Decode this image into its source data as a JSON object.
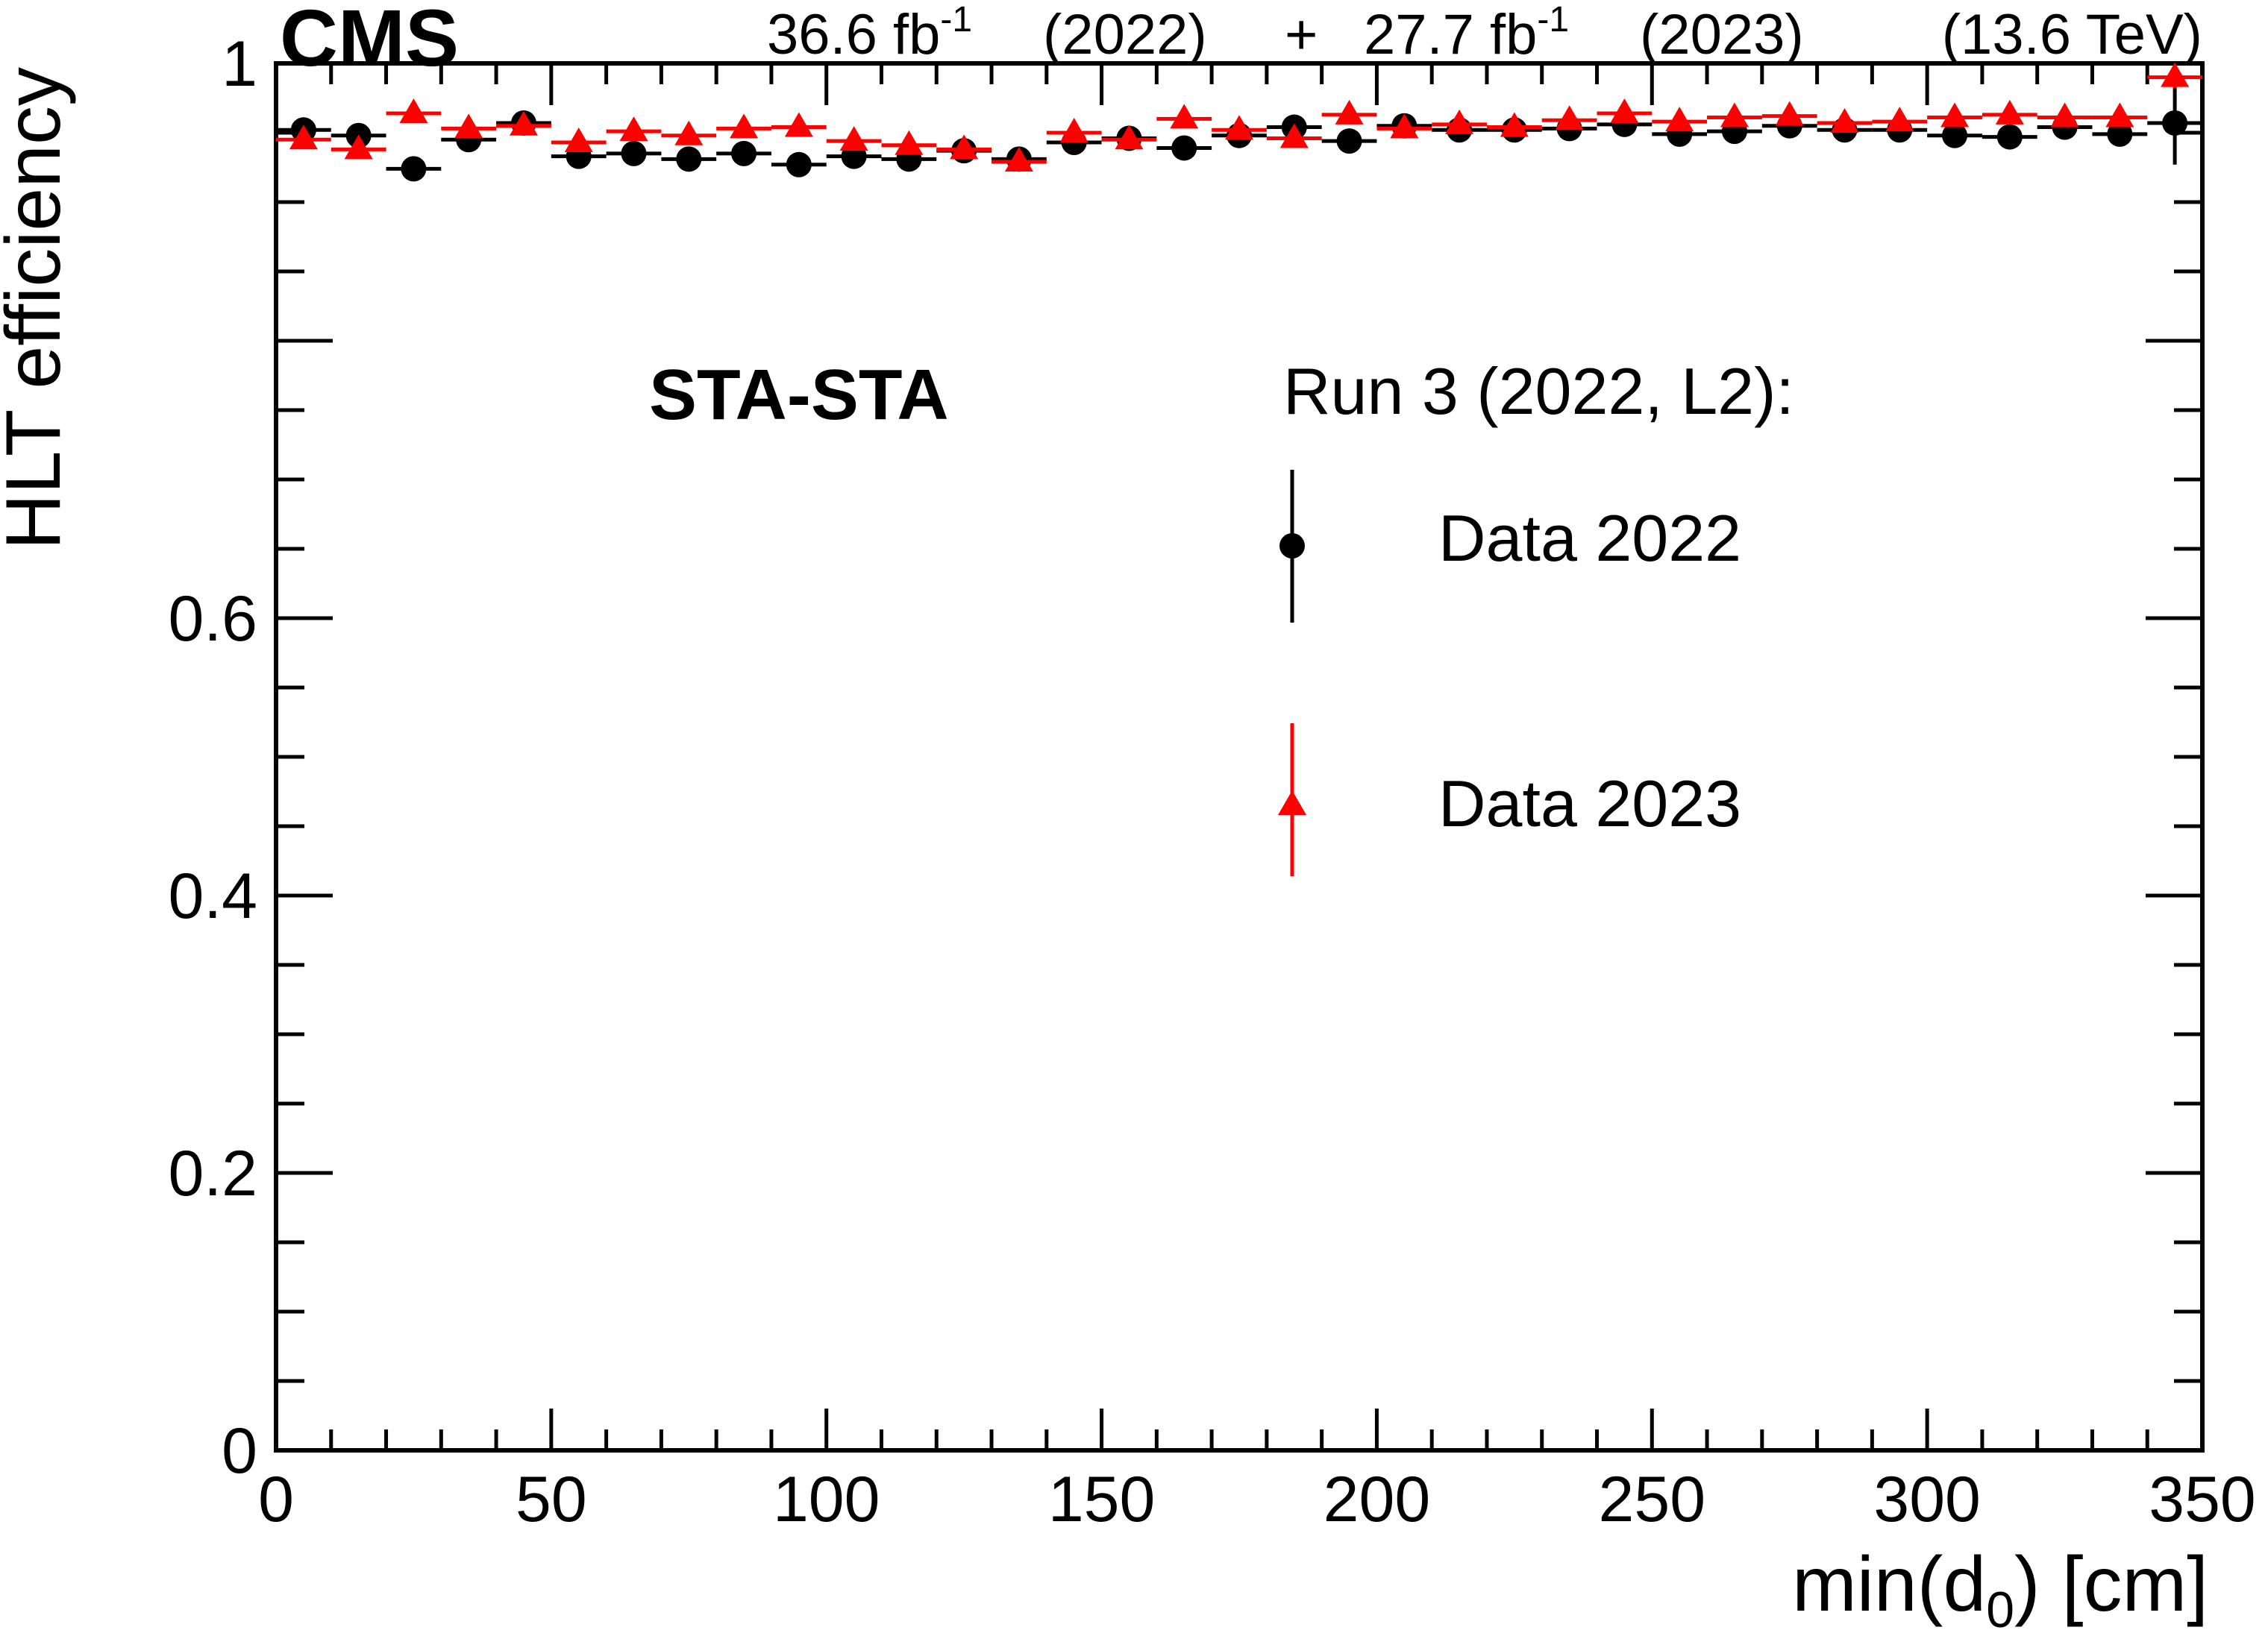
{
  "header": {
    "experiment": "CMS",
    "lumi_2022": "36.6 fb",
    "lumi_2022_exp": "-1",
    "year_2022": "(2022)",
    "plus": "+",
    "lumi_2023": "27.7 fb",
    "lumi_2023_exp": "-1",
    "year_2023": "(2023)",
    "energy": "(13.6 TeV)"
  },
  "annotation": "STA-STA",
  "legend": {
    "title": "Run 3 (2022, L2):",
    "entries": [
      "Data 2022",
      "Data 2023"
    ]
  },
  "axes": {
    "xlabel_main": "min(d",
    "xlabel_sub": "0",
    "xlabel_tail": ") [cm]",
    "ylabel": "HLT efficiency"
  },
  "chart_data": {
    "type": "scatter",
    "xlim": [
      0,
      350
    ],
    "ylim": [
      0,
      1.0
    ],
    "x_ticks": [
      "0",
      "50",
      "100",
      "150",
      "200",
      "250",
      "300",
      "350"
    ],
    "y_ticks": [
      "0",
      "0.2",
      "0.4",
      "0.6",
      "",
      "1"
    ],
    "bin_width": 10,
    "x": [
      5,
      15,
      25,
      35,
      45,
      55,
      65,
      75,
      85,
      95,
      105,
      115,
      125,
      135,
      145,
      155,
      165,
      175,
      185,
      195,
      205,
      215,
      225,
      235,
      245,
      255,
      265,
      275,
      285,
      295,
      305,
      315,
      325,
      335,
      345
    ],
    "series": [
      {
        "name": "Data 2022",
        "marker": "circle",
        "color": "#000000",
        "values": [
          0.952,
          0.948,
          0.924,
          0.945,
          0.957,
          0.933,
          0.935,
          0.931,
          0.935,
          0.927,
          0.933,
          0.931,
          0.937,
          0.931,
          0.943,
          0.946,
          0.939,
          0.948,
          0.954,
          0.944,
          0.955,
          0.952,
          0.952,
          0.953,
          0.956,
          0.949,
          0.951,
          0.955,
          0.952,
          0.952,
          0.948,
          0.947,
          0.954,
          0.949,
          0.957
        ],
        "errors": [
          0.004,
          0.004,
          0.005,
          0.004,
          0.004,
          0.004,
          0.004,
          0.004,
          0.004,
          0.004,
          0.004,
          0.004,
          0.004,
          0.004,
          0.004,
          0.004,
          0.004,
          0.004,
          0.004,
          0.004,
          0.004,
          0.004,
          0.004,
          0.004,
          0.004,
          0.004,
          0.004,
          0.004,
          0.004,
          0.004,
          0.004,
          0.005,
          0.005,
          0.006,
          0.03
        ]
      },
      {
        "name": "Data 2023",
        "marker": "triangle",
        "color": "#ff0000",
        "values": [
          0.945,
          0.938,
          0.964,
          0.953,
          0.955,
          0.943,
          0.951,
          0.948,
          0.953,
          0.954,
          0.944,
          0.941,
          0.938,
          0.929,
          0.95,
          0.945,
          0.96,
          0.952,
          0.946,
          0.963,
          0.953,
          0.956,
          0.954,
          0.959,
          0.964,
          0.958,
          0.961,
          0.962,
          0.957,
          0.958,
          0.961,
          0.963,
          0.961,
          0.961,
          0.99
        ],
        "errors": [
          0.004,
          0.004,
          0.004,
          0.004,
          0.004,
          0.004,
          0.004,
          0.004,
          0.004,
          0.004,
          0.004,
          0.004,
          0.004,
          0.004,
          0.004,
          0.004,
          0.004,
          0.004,
          0.004,
          0.004,
          0.004,
          0.004,
          0.004,
          0.004,
          0.004,
          0.004,
          0.004,
          0.004,
          0.004,
          0.004,
          0.004,
          0.005,
          0.005,
          0.006,
          0.008
        ]
      }
    ]
  }
}
